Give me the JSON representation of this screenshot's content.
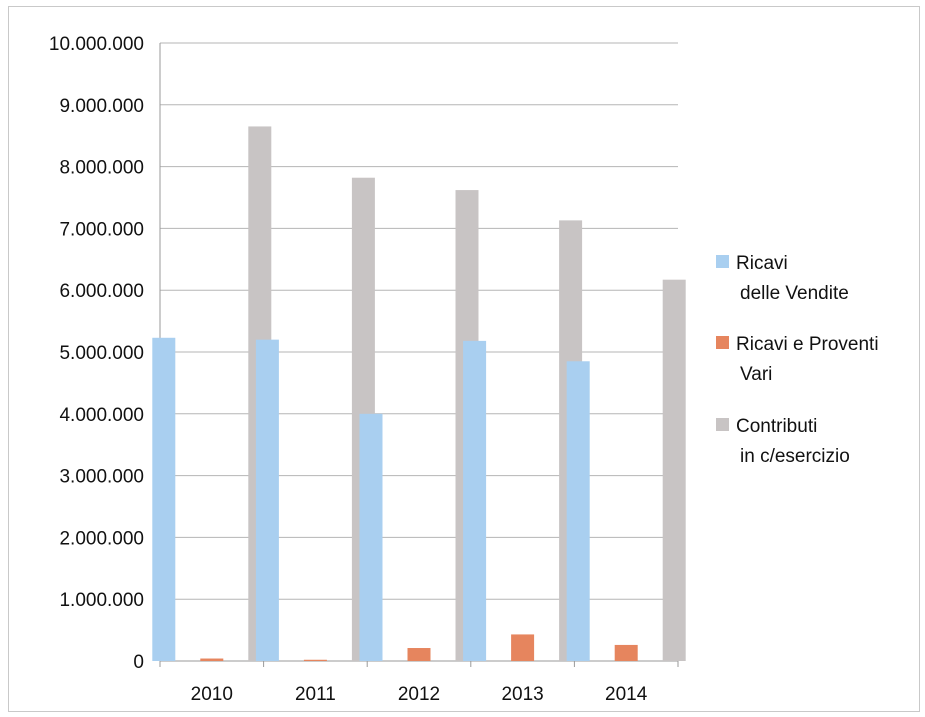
{
  "chart_data": {
    "type": "bar",
    "title": "",
    "xlabel": "",
    "ylabel": "",
    "categories": [
      "2010",
      "2011",
      "2012",
      "2013",
      "2014"
    ],
    "ylim": [
      0,
      10000000
    ],
    "yticks": [
      "0",
      "1.000.000",
      "2.000.000",
      "3.000.000",
      "4.000.000",
      "5.000.000",
      "6.000.000",
      "7.000.000",
      "8.000.000",
      "9.000.000",
      "10.000.000"
    ],
    "grid": true,
    "legend_position": "right",
    "series": [
      {
        "name": "Ricavi delle Vendite",
        "legend_lines": [
          "Ricavi",
          "delle Vendite"
        ],
        "color": "#a9cff0",
        "values": [
          5230000,
          5200000,
          4000000,
          5180000,
          4850000
        ]
      },
      {
        "name": "Ricavi e Proventi Vari",
        "legend_lines": [
          "Ricavi e Proventi",
          "Vari"
        ],
        "color": "#e6855e",
        "values": [
          40000,
          20000,
          210000,
          430000,
          260000
        ]
      },
      {
        "name": "Contributi in c/esercizio",
        "legend_lines": [
          "Contributi",
          "in c/esercizio"
        ],
        "color": "#c8c4c4",
        "values": [
          8650000,
          7820000,
          7620000,
          7130000,
          6170000
        ]
      }
    ]
  }
}
